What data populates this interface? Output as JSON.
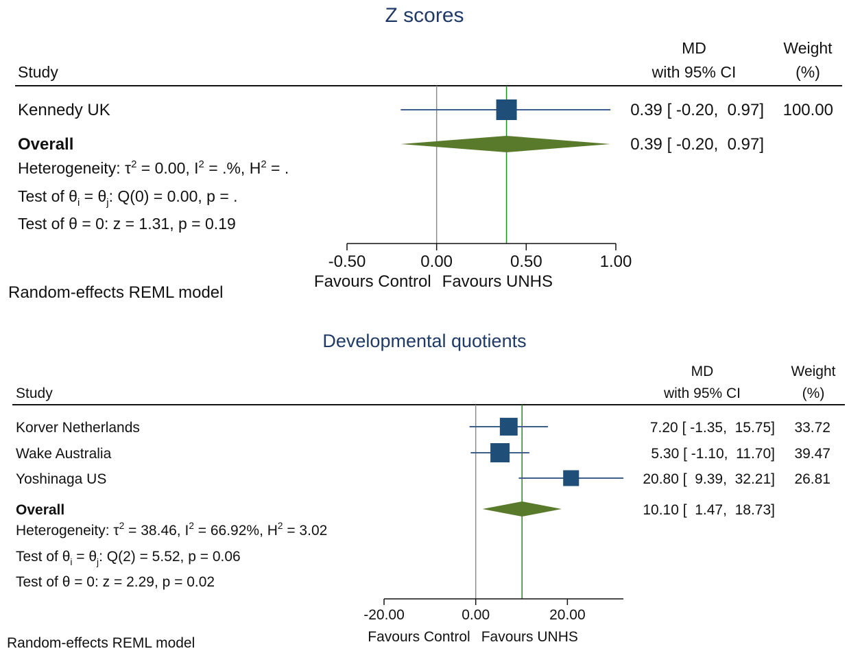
{
  "colors": {
    "title": "#1f3a66",
    "study_marker": "#1f4e79",
    "ci_line": "#3b5f8a",
    "overall_diamond": "#5a7a2b",
    "overall_line": "#1e8c1e",
    "null_line": "#8c8c8c",
    "axis": "#111111"
  },
  "chart_data": [
    {
      "type": "forest",
      "title": "Z scores",
      "column_headers": {
        "study": "Study",
        "md_top": "MD",
        "md_bottom": "with 95% CI",
        "weight_top": "Weight",
        "weight_bottom": "(%)"
      },
      "studies": [
        {
          "name": "Kennedy UK",
          "md": 0.39,
          "lower": -0.2,
          "upper": 0.97,
          "md_text": "0.39 [ -0.20,  0.97]",
          "weight": 100.0,
          "weight_text": "100.00"
        }
      ],
      "overall": {
        "label": "Overall",
        "md": 0.39,
        "lower": -0.2,
        "upper": 0.97,
        "md_text": "0.39 [ -0.20,  0.97]"
      },
      "stats": {
        "heterogeneity": {
          "prefix": "Heterogeneity: τ",
          "sup1": "2",
          "mid1": " = 0.00, I",
          "sup2": "2",
          "mid2": " = .%, H",
          "sup3": "2",
          "tail": " = ."
        },
        "test_q": {
          "prefix": "Test of θ",
          "sub1": "i",
          "mid": " = θ",
          "sub2": "j",
          "tail": ": Q(0) = 0.00, p = ."
        },
        "test_z": "Test of θ = 0: z = 1.31, p = 0.19"
      },
      "x_ticks": [
        -0.5,
        0,
        0.5,
        1
      ],
      "x_tick_labels": [
        "-0.50",
        "0.00",
        "0.50",
        "1.00"
      ],
      "x_range": [
        -0.5,
        1.0
      ],
      "null_value": 0,
      "favours_left": "Favours Control",
      "favours_right": "Favours UNHS",
      "model_note": "Random-effects REML model"
    },
    {
      "type": "forest",
      "title": "Developmental quotients",
      "column_headers": {
        "study": "Study",
        "md_top": "MD",
        "md_bottom": "with 95% CI",
        "weight_top": "Weight",
        "weight_bottom": "(%)"
      },
      "studies": [
        {
          "name": "Korver Netherlands",
          "md": 7.2,
          "lower": -1.35,
          "upper": 15.75,
          "md_text": "7.20 [ -1.35,  15.75]",
          "weight": 33.72,
          "weight_text": "33.72"
        },
        {
          "name": "Wake Australia",
          "md": 5.3,
          "lower": -1.1,
          "upper": 11.7,
          "md_text": "5.30 [ -1.10,  11.70]",
          "weight": 39.47,
          "weight_text": "39.47"
        },
        {
          "name": "Yoshinaga US",
          "md": 20.8,
          "lower": 9.39,
          "upper": 32.21,
          "md_text": "20.80 [  9.39,  32.21]",
          "weight": 26.81,
          "weight_text": "26.81"
        }
      ],
      "overall": {
        "label": "Overall",
        "md": 10.1,
        "lower": 1.47,
        "upper": 18.73,
        "md_text": "10.10 [  1.47,  18.73]"
      },
      "stats": {
        "heterogeneity": {
          "prefix": "Heterogeneity: τ",
          "sup1": "2",
          "mid1": " = 38.46, I",
          "sup2": "2",
          "mid2": " = 66.92%, H",
          "sup3": "2",
          "tail": " = 3.02"
        },
        "test_q": {
          "prefix": "Test of θ",
          "sub1": "i",
          "mid": " = θ",
          "sub2": "j",
          "tail": ": Q(2) = 5.52, p = 0.06"
        },
        "test_z": "Test of θ = 0: z = 2.29, p = 0.02"
      },
      "x_ticks": [
        -20,
        0,
        20
      ],
      "x_tick_labels": [
        "-20.00",
        "0.00",
        "20.00"
      ],
      "x_range": [
        -20,
        32.21
      ],
      "null_value": 0,
      "favours_left": "Favours Control",
      "favours_right": "Favours UNHS",
      "model_note": "Random-effects REML model"
    }
  ]
}
